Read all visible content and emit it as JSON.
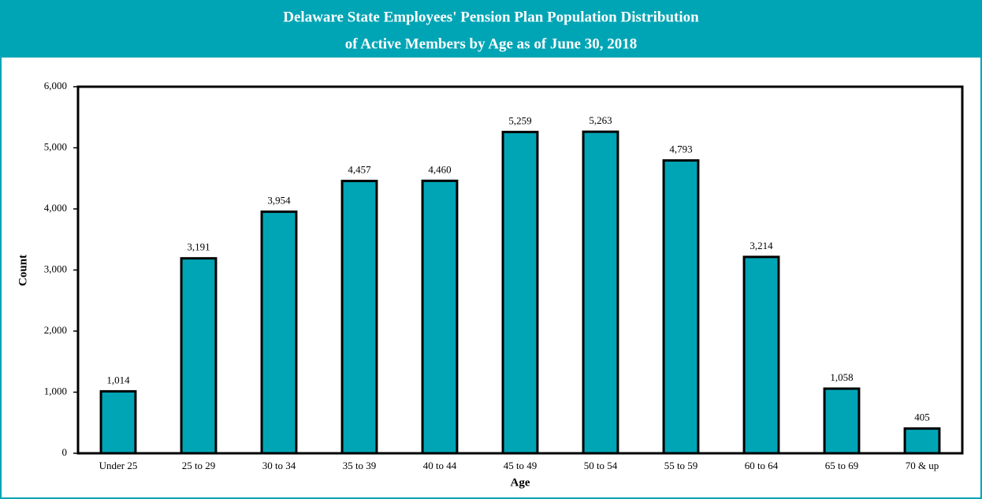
{
  "chart_data": {
    "type": "bar",
    "title": [
      "Delaware State Employees' Pension Plan Population Distribution",
      "of Active Members by Age as of June 30, 2018"
    ],
    "x_label": "Age",
    "y_label": "Count",
    "categories": [
      "Under 25",
      "25 to 29",
      "30 to 34",
      "35 to 39",
      "40 to 44",
      "45 to 49",
      "50 to 54",
      "55 to 59",
      "60 to 64",
      "65 to 69",
      "70 & up"
    ],
    "values": [
      1014,
      3191,
      3954,
      4457,
      4460,
      5259,
      5263,
      4793,
      3214,
      1058,
      405
    ],
    "value_labels": [
      "1,014",
      "3,191",
      "3,954",
      "4,457",
      "4,460",
      "5,259",
      "5,263",
      "4,793",
      "3,214",
      "1,058",
      "405"
    ],
    "color": "#00a5b5",
    "ylim": [
      0,
      6000
    ],
    "yticks": [
      0,
      {
        "value": 1000,
        "label": "1,000"
      },
      {
        "value": 2000,
        "label": "2,000"
      },
      {
        "value": 3000,
        "label": "3,000"
      },
      {
        "value": 4000,
        "label": "4,000"
      },
      {
        "value": 5000,
        "label": "5,000"
      },
      {
        "value": 6000,
        "label": "6,000"
      }
    ],
    "grid": false
  }
}
